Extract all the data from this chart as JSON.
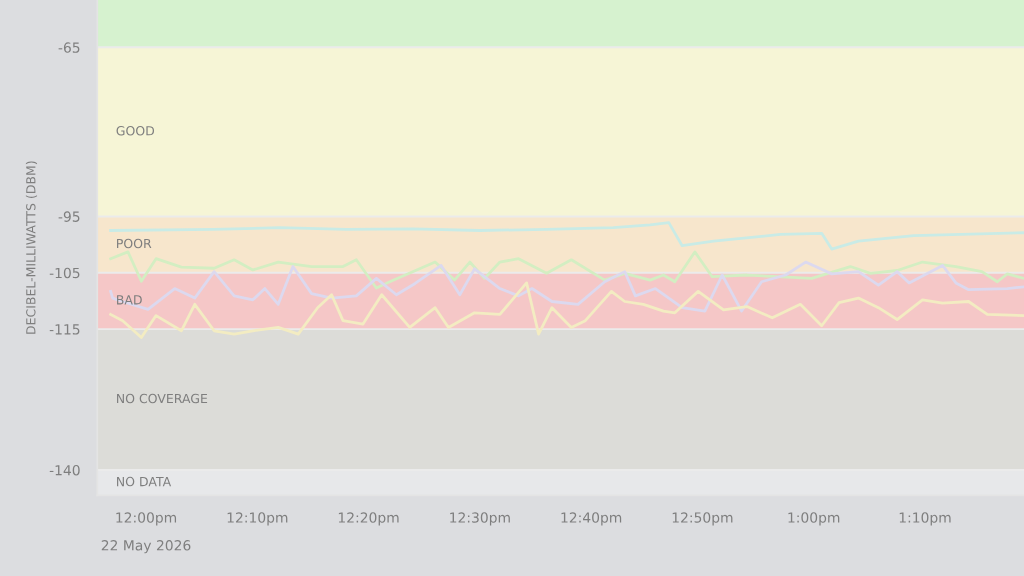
{
  "chart_data": {
    "type": "line",
    "ylabel": "DECIBEL-MILLIWATTS (DBM)",
    "xlim": [
      11.927,
      13.315
    ],
    "ylim": [
      -144.5,
      -56.6
    ],
    "xticks": [
      {
        "value": 12,
        "label": "12:00pm"
      },
      {
        "value": 12.1667,
        "label": "12:10pm"
      },
      {
        "value": 12.3333,
        "label": "12:20pm"
      },
      {
        "value": 12.5,
        "label": "12:30pm"
      },
      {
        "value": 12.6667,
        "label": "12:40pm"
      },
      {
        "value": 12.8333,
        "label": "12:50pm"
      },
      {
        "value": 13,
        "label": "1:00pm"
      },
      {
        "value": 13.1667,
        "label": "1:10pm"
      }
    ],
    "yticks": [
      -65,
      -95,
      -105,
      -115,
      -140
    ],
    "grid": "y",
    "legend": false,
    "marker": "none",
    "line_style": "solid",
    "annotations": [
      "22 May 2026"
    ],
    "bands": [
      {
        "axis": "y",
        "from": -65,
        "to": -56.6,
        "label": null,
        "color": "#d6f2cf"
      },
      {
        "axis": "y",
        "from": -95,
        "to": -65,
        "label": "GOOD",
        "color": "#f6f5d6"
      },
      {
        "axis": "y",
        "from": -105,
        "to": -95,
        "label": "POOR",
        "color": "#f7e6cc"
      },
      {
        "axis": "y",
        "from": -115,
        "to": -105,
        "label": "BAD",
        "color": "#f5c7c7"
      },
      {
        "axis": "y",
        "from": -140,
        "to": -115,
        "label": "NO COVERAGE",
        "color": "#dcdcd8"
      },
      {
        "axis": "y",
        "from": -144.5,
        "to": -140,
        "label": "NO DATA",
        "color": "#e7e8ea"
      }
    ],
    "series": [
      {
        "color": "#c9ebe6",
        "x": [
          11.947,
          12.1,
          12.2,
          12.3,
          12.4,
          12.5,
          12.6,
          12.7,
          12.755,
          12.783,
          12.803,
          12.85,
          12.95,
          13.012,
          13.027,
          13.067,
          13.15,
          13.315
        ],
        "values": [
          -97.5,
          -97.3,
          -97.0,
          -97.3,
          -97.2,
          -97.5,
          -97.3,
          -97.0,
          -96.5,
          -96.1,
          -100.2,
          -99.4,
          -98.2,
          -98.0,
          -100.8,
          -99.4,
          -98.4,
          -97.9
        ]
      },
      {
        "color": "#d3eec2",
        "x": [
          11.947,
          11.973,
          11.993,
          12.015,
          12.053,
          12.102,
          12.132,
          12.16,
          12.198,
          12.248,
          12.295,
          12.315,
          12.345,
          12.365,
          12.433,
          12.462,
          12.485,
          12.507,
          12.53,
          12.558,
          12.6,
          12.637,
          12.687,
          12.717,
          12.755,
          12.775,
          12.792,
          12.822,
          12.848,
          12.9,
          12.997,
          13.055,
          13.085,
          13.125,
          13.163,
          13.213,
          13.252,
          13.275,
          13.29,
          13.315
        ],
        "values": [
          -102.5,
          -101.3,
          -106.5,
          -102.5,
          -104,
          -104.2,
          -102.7,
          -104.5,
          -103.1,
          -103.9,
          -103.9,
          -102.7,
          -107.7,
          -106.6,
          -103.1,
          -106.3,
          -103.1,
          -106,
          -103.1,
          -102.5,
          -105.1,
          -102.7,
          -106.3,
          -105.1,
          -106.3,
          -105.4,
          -106.6,
          -101.3,
          -105.7,
          -105.4,
          -106,
          -103.9,
          -105.1,
          -104.6,
          -103.1,
          -103.9,
          -104.8,
          -106.6,
          -105.2,
          -106
        ]
      },
      {
        "color": "#dcd9ef",
        "x": [
          11.947,
          11.95,
          11.965,
          12.003,
          12.043,
          12.073,
          12.102,
          12.132,
          12.16,
          12.178,
          12.198,
          12.22,
          12.248,
          12.278,
          12.315,
          12.345,
          12.375,
          12.403,
          12.442,
          12.47,
          12.492,
          12.53,
          12.558,
          12.578,
          12.608,
          12.647,
          12.687,
          12.717,
          12.733,
          12.763,
          12.803,
          12.837,
          12.863,
          12.892,
          12.922,
          12.958,
          12.988,
          13.027,
          13.067,
          13.097,
          13.125,
          13.143,
          13.193,
          13.213,
          13.232,
          13.29,
          13.315
        ],
        "values": [
          -108.3,
          -109.5,
          -110.1,
          -111.5,
          -107.8,
          -109.5,
          -104.8,
          -109.1,
          -109.8,
          -107.8,
          -110.6,
          -103.9,
          -108.7,
          -109.5,
          -109.1,
          -106,
          -108.9,
          -106.9,
          -103.7,
          -108.9,
          -104.3,
          -107.8,
          -109.1,
          -107.8,
          -110.1,
          -110.6,
          -106.6,
          -104.8,
          -109.1,
          -107.8,
          -111.2,
          -111.8,
          -105.4,
          -111.8,
          -106.6,
          -105.4,
          -103.1,
          -105.2,
          -104.8,
          -107.2,
          -104.8,
          -106.8,
          -103.7,
          -106.8,
          -108,
          -107.8,
          -107.5
        ]
      },
      {
        "color": "#f3ecc2",
        "x": [
          11.947,
          11.965,
          11.993,
          12.015,
          12.053,
          12.073,
          12.102,
          12.132,
          12.16,
          12.198,
          12.228,
          12.257,
          12.278,
          12.295,
          12.325,
          12.353,
          12.395,
          12.433,
          12.453,
          12.492,
          12.53,
          12.57,
          12.588,
          12.608,
          12.637,
          12.658,
          12.697,
          12.717,
          12.745,
          12.775,
          12.792,
          12.827,
          12.865,
          12.9,
          12.938,
          12.98,
          13.012,
          13.038,
          13.067,
          13.097,
          13.125,
          13.163,
          13.193,
          13.232,
          13.26,
          13.315
        ],
        "values": [
          -112.4,
          -113.5,
          -116.5,
          -112.6,
          -115.3,
          -110.6,
          -115.3,
          -115.9,
          -115.3,
          -114.7,
          -115.9,
          -111.2,
          -108.9,
          -113.5,
          -114.1,
          -108.9,
          -114.7,
          -111.2,
          -114.7,
          -112.1,
          -112.4,
          -106.8,
          -115.9,
          -111.2,
          -114.7,
          -113.5,
          -108.3,
          -110.1,
          -110.6,
          -111.8,
          -112.1,
          -108.3,
          -111.6,
          -111,
          -113,
          -110.6,
          -114.4,
          -110.3,
          -109.5,
          -111.2,
          -113.3,
          -109.8,
          -110.4,
          -110.1,
          -112.4,
          -112.6
        ]
      }
    ]
  }
}
